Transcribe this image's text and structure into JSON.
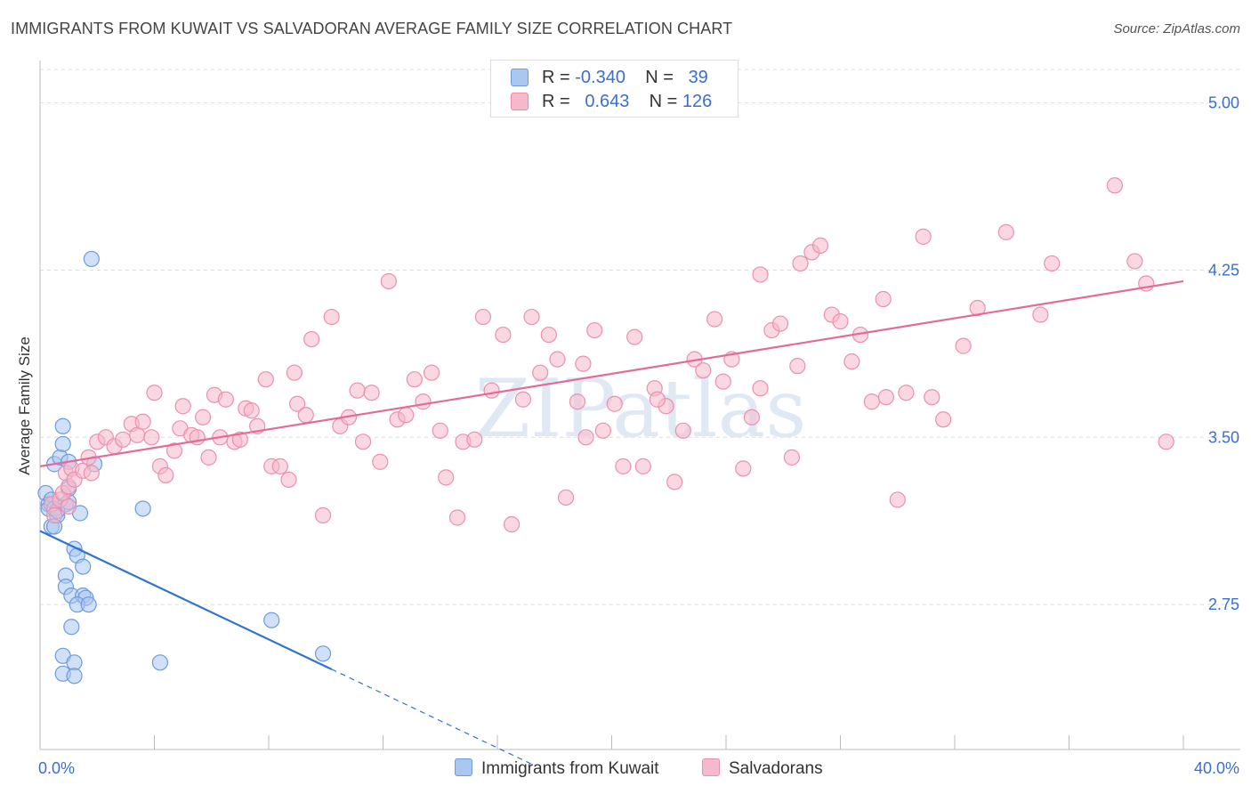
{
  "title": "IMMIGRANTS FROM KUWAIT VS SALVADORAN AVERAGE FAMILY SIZE CORRELATION CHART",
  "source": "Source: ZipAtlas.com",
  "watermark": "ZIPatlas",
  "legend": {
    "rows": [
      {
        "r_label": "R =",
        "r_value": "-0.340",
        "n_label": "N =",
        "n_value": "39"
      },
      {
        "r_label": "R =",
        "r_value": "0.643",
        "n_label": "N =",
        "n_value": "126"
      }
    ]
  },
  "colors": {
    "kuwait_fill": "#a9c7f0",
    "kuwait_stroke": "#6d9be0",
    "kuwait_line": "#2f74d0",
    "salv_fill": "#f6b8cb",
    "salv_stroke": "#ec8fae",
    "salv_line": "#e46b97",
    "tick_text": "#3a6fd0",
    "grid": "#dddddd"
  },
  "chart_data": {
    "type": "scatter",
    "ylabel": "Average Family Size",
    "xlabel": "",
    "xlim": [
      0,
      40
    ],
    "ylim": [
      2.1,
      5.15
    ],
    "x_tick_labels": [
      "0.0%",
      "40.0%"
    ],
    "y_ticks": [
      2.75,
      3.5,
      4.25,
      5.0
    ],
    "y_tick_labels": [
      "2.75",
      "3.50",
      "4.25",
      "5.00"
    ],
    "grid": true,
    "legend_position": "top-center",
    "series": [
      {
        "name": "Immigrants from Kuwait",
        "trend": {
          "x0": 0,
          "y0": 3.08,
          "x1": 10.2,
          "y1": 2.46,
          "dash_to_x": 17.3
        },
        "points": [
          [
            0.2,
            3.25
          ],
          [
            0.3,
            3.2
          ],
          [
            0.3,
            3.18
          ],
          [
            0.4,
            3.22
          ],
          [
            0.4,
            3.1
          ],
          [
            0.5,
            3.38
          ],
          [
            0.6,
            3.15
          ],
          [
            0.5,
            3.18
          ],
          [
            0.7,
            3.41
          ],
          [
            0.8,
            3.55
          ],
          [
            0.8,
            3.47
          ],
          [
            0.9,
            3.2
          ],
          [
            1.0,
            3.27
          ],
          [
            1.0,
            3.39
          ],
          [
            0.5,
            3.1
          ],
          [
            0.6,
            3.17
          ],
          [
            1.0,
            3.21
          ],
          [
            1.4,
            3.16
          ],
          [
            0.9,
            2.88
          ],
          [
            0.9,
            2.83
          ],
          [
            1.2,
            3.0
          ],
          [
            1.3,
            2.97
          ],
          [
            1.5,
            2.92
          ],
          [
            1.1,
            2.79
          ],
          [
            1.5,
            2.79
          ],
          [
            1.6,
            2.78
          ],
          [
            1.3,
            2.75
          ],
          [
            1.7,
            2.75
          ],
          [
            1.1,
            2.65
          ],
          [
            0.8,
            2.52
          ],
          [
            1.2,
            2.49
          ],
          [
            0.8,
            2.44
          ],
          [
            1.2,
            2.43
          ],
          [
            4.2,
            2.49
          ],
          [
            3.6,
            3.18
          ],
          [
            8.1,
            2.68
          ],
          [
            9.9,
            2.53
          ],
          [
            1.8,
            4.3
          ],
          [
            1.9,
            3.38
          ]
        ]
      },
      {
        "name": "Salvadorans",
        "trend": {
          "x0": 0,
          "y0": 3.37,
          "x1": 40,
          "y1": 4.2
        },
        "points": [
          [
            0.4,
            3.2
          ],
          [
            0.5,
            3.15
          ],
          [
            0.7,
            3.22
          ],
          [
            0.8,
            3.25
          ],
          [
            0.9,
            3.34
          ],
          [
            1.0,
            3.28
          ],
          [
            1.0,
            3.19
          ],
          [
            1.1,
            3.36
          ],
          [
            1.2,
            3.31
          ],
          [
            1.5,
            3.35
          ],
          [
            1.7,
            3.41
          ],
          [
            1.8,
            3.34
          ],
          [
            2.0,
            3.48
          ],
          [
            2.3,
            3.5
          ],
          [
            2.6,
            3.46
          ],
          [
            2.9,
            3.49
          ],
          [
            3.2,
            3.56
          ],
          [
            3.4,
            3.51
          ],
          [
            3.6,
            3.57
          ],
          [
            3.9,
            3.5
          ],
          [
            4.0,
            3.7
          ],
          [
            4.2,
            3.37
          ],
          [
            4.4,
            3.33
          ],
          [
            4.7,
            3.44
          ],
          [
            4.9,
            3.54
          ],
          [
            5.0,
            3.64
          ],
          [
            5.3,
            3.51
          ],
          [
            5.5,
            3.5
          ],
          [
            5.7,
            3.59
          ],
          [
            5.9,
            3.41
          ],
          [
            6.1,
            3.69
          ],
          [
            6.3,
            3.5
          ],
          [
            6.5,
            3.67
          ],
          [
            6.8,
            3.48
          ],
          [
            7.0,
            3.49
          ],
          [
            7.2,
            3.63
          ],
          [
            7.4,
            3.62
          ],
          [
            7.6,
            3.55
          ],
          [
            7.9,
            3.76
          ],
          [
            8.1,
            3.37
          ],
          [
            8.4,
            3.37
          ],
          [
            8.7,
            3.31
          ],
          [
            8.9,
            3.79
          ],
          [
            9.0,
            3.65
          ],
          [
            9.3,
            3.6
          ],
          [
            9.5,
            3.94
          ],
          [
            9.9,
            3.15
          ],
          [
            10.2,
            4.04
          ],
          [
            10.5,
            3.55
          ],
          [
            10.8,
            3.59
          ],
          [
            11.1,
            3.71
          ],
          [
            11.3,
            3.48
          ],
          [
            11.6,
            3.7
          ],
          [
            11.9,
            3.39
          ],
          [
            12.2,
            4.2
          ],
          [
            12.5,
            3.58
          ],
          [
            12.8,
            3.6
          ],
          [
            13.1,
            3.76
          ],
          [
            13.4,
            3.66
          ],
          [
            13.7,
            3.79
          ],
          [
            14.0,
            3.53
          ],
          [
            14.2,
            3.32
          ],
          [
            14.6,
            3.14
          ],
          [
            14.8,
            3.48
          ],
          [
            15.2,
            3.49
          ],
          [
            15.5,
            4.04
          ],
          [
            15.8,
            3.71
          ],
          [
            16.2,
            3.96
          ],
          [
            16.5,
            3.11
          ],
          [
            16.9,
            3.67
          ],
          [
            17.2,
            4.04
          ],
          [
            17.5,
            3.79
          ],
          [
            17.8,
            3.96
          ],
          [
            18.1,
            3.85
          ],
          [
            18.4,
            3.23
          ],
          [
            18.8,
            3.66
          ],
          [
            19.1,
            3.5
          ],
          [
            19.4,
            3.98
          ],
          [
            19.7,
            3.53
          ],
          [
            20.1,
            3.65
          ],
          [
            20.4,
            3.37
          ],
          [
            20.8,
            3.95
          ],
          [
            21.1,
            3.37
          ],
          [
            21.5,
            3.72
          ],
          [
            21.9,
            3.64
          ],
          [
            22.2,
            3.3
          ],
          [
            22.5,
            3.53
          ],
          [
            22.9,
            3.85
          ],
          [
            23.2,
            3.8
          ],
          [
            23.6,
            4.03
          ],
          [
            23.9,
            3.75
          ],
          [
            24.2,
            3.85
          ],
          [
            24.6,
            3.36
          ],
          [
            24.9,
            3.59
          ],
          [
            25.2,
            4.23
          ],
          [
            25.6,
            3.98
          ],
          [
            25.9,
            4.01
          ],
          [
            26.3,
            3.41
          ],
          [
            26.6,
            4.28
          ],
          [
            27.0,
            4.33
          ],
          [
            27.3,
            4.36
          ],
          [
            27.7,
            4.05
          ],
          [
            28.0,
            4.02
          ],
          [
            28.4,
            3.84
          ],
          [
            28.7,
            3.96
          ],
          [
            29.1,
            3.66
          ],
          [
            29.5,
            4.12
          ],
          [
            30.3,
            3.7
          ],
          [
            30.9,
            4.4
          ],
          [
            31.6,
            3.58
          ],
          [
            32.3,
            3.91
          ],
          [
            32.8,
            4.08
          ],
          [
            33.8,
            4.42
          ],
          [
            35.0,
            4.05
          ],
          [
            35.4,
            4.28
          ],
          [
            37.6,
            4.63
          ],
          [
            38.3,
            4.29
          ],
          [
            38.7,
            4.19
          ],
          [
            39.4,
            3.48
          ],
          [
            29.6,
            3.68
          ],
          [
            30.0,
            3.22
          ],
          [
            31.2,
            3.68
          ],
          [
            25.2,
            3.72
          ],
          [
            21.6,
            3.67
          ],
          [
            19.0,
            3.83
          ],
          [
            26.5,
            3.82
          ]
        ]
      }
    ]
  },
  "bottom_legend": [
    {
      "label": "Immigrants from Kuwait"
    },
    {
      "label": "Salvadorans"
    }
  ]
}
